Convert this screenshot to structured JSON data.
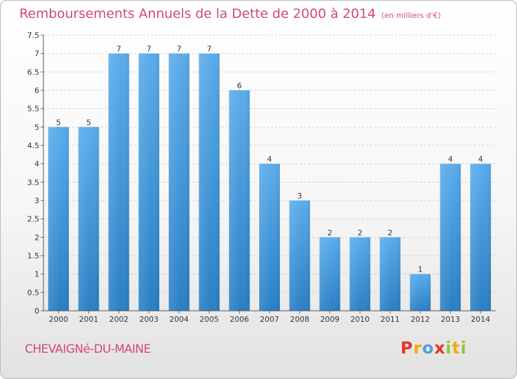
{
  "title": "Remboursements Annuels de la Dette de 2000 à 2014",
  "unit": "(en milliers d'€)",
  "place": "CHEVAIGNé-DU-MAINE",
  "logo": {
    "letters": [
      "P",
      "r",
      "o",
      "x",
      "i",
      "t",
      "i"
    ],
    "colors": [
      "#e7332b",
      "#f6a800",
      "#4e9fd9",
      "#e7332b",
      "#8cc63f",
      "#f6a800",
      "#8cc63f"
    ]
  },
  "colors": {
    "bar_top": "#5aacec",
    "bar_bottom": "#2a7fc4",
    "title": "#d4477a"
  },
  "chart_data": {
    "type": "bar",
    "title": "Remboursements Annuels de la Dette de 2000 à 2014",
    "xlabel": "",
    "ylabel": "",
    "categories": [
      "2000",
      "2001",
      "2002",
      "2003",
      "2004",
      "2005",
      "2006",
      "2007",
      "2008",
      "2009",
      "2010",
      "2011",
      "2012",
      "2013",
      "2014"
    ],
    "values": [
      5,
      5,
      7,
      7,
      7,
      7,
      6,
      4,
      3,
      2,
      2,
      2,
      1,
      4,
      4
    ],
    "data_labels": [
      "5",
      "5",
      "7",
      "7",
      "7",
      "7",
      "6",
      "4",
      "3",
      "2",
      "2",
      "2",
      "1",
      "4",
      "4"
    ],
    "ylim": [
      0,
      7.5
    ],
    "yticks": [
      0,
      0.5,
      1,
      1.5,
      2,
      2.5,
      3,
      3.5,
      4,
      4.5,
      5,
      5.5,
      6,
      6.5,
      7,
      7.5
    ],
    "ytick_labels": [
      "0",
      "0.5",
      "1",
      "1.5",
      "2",
      "2.5",
      "3",
      "3.5",
      "4",
      "4.5",
      "5",
      "5.5",
      "6",
      "6.5",
      "7",
      "7.5"
    ],
    "grid": true
  }
}
